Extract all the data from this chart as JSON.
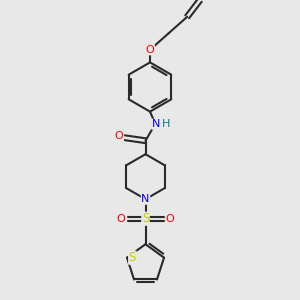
{
  "bg_color": "#e8e8e8",
  "bond_color": "#2a2a2a",
  "atom_colors": {
    "O": "#ff0000",
    "N": "#0000ff",
    "S": "#cccc00",
    "H": "#008080"
  },
  "line_width": 1.5,
  "fig_size": [
    3.0,
    3.0
  ],
  "dpi": 100
}
